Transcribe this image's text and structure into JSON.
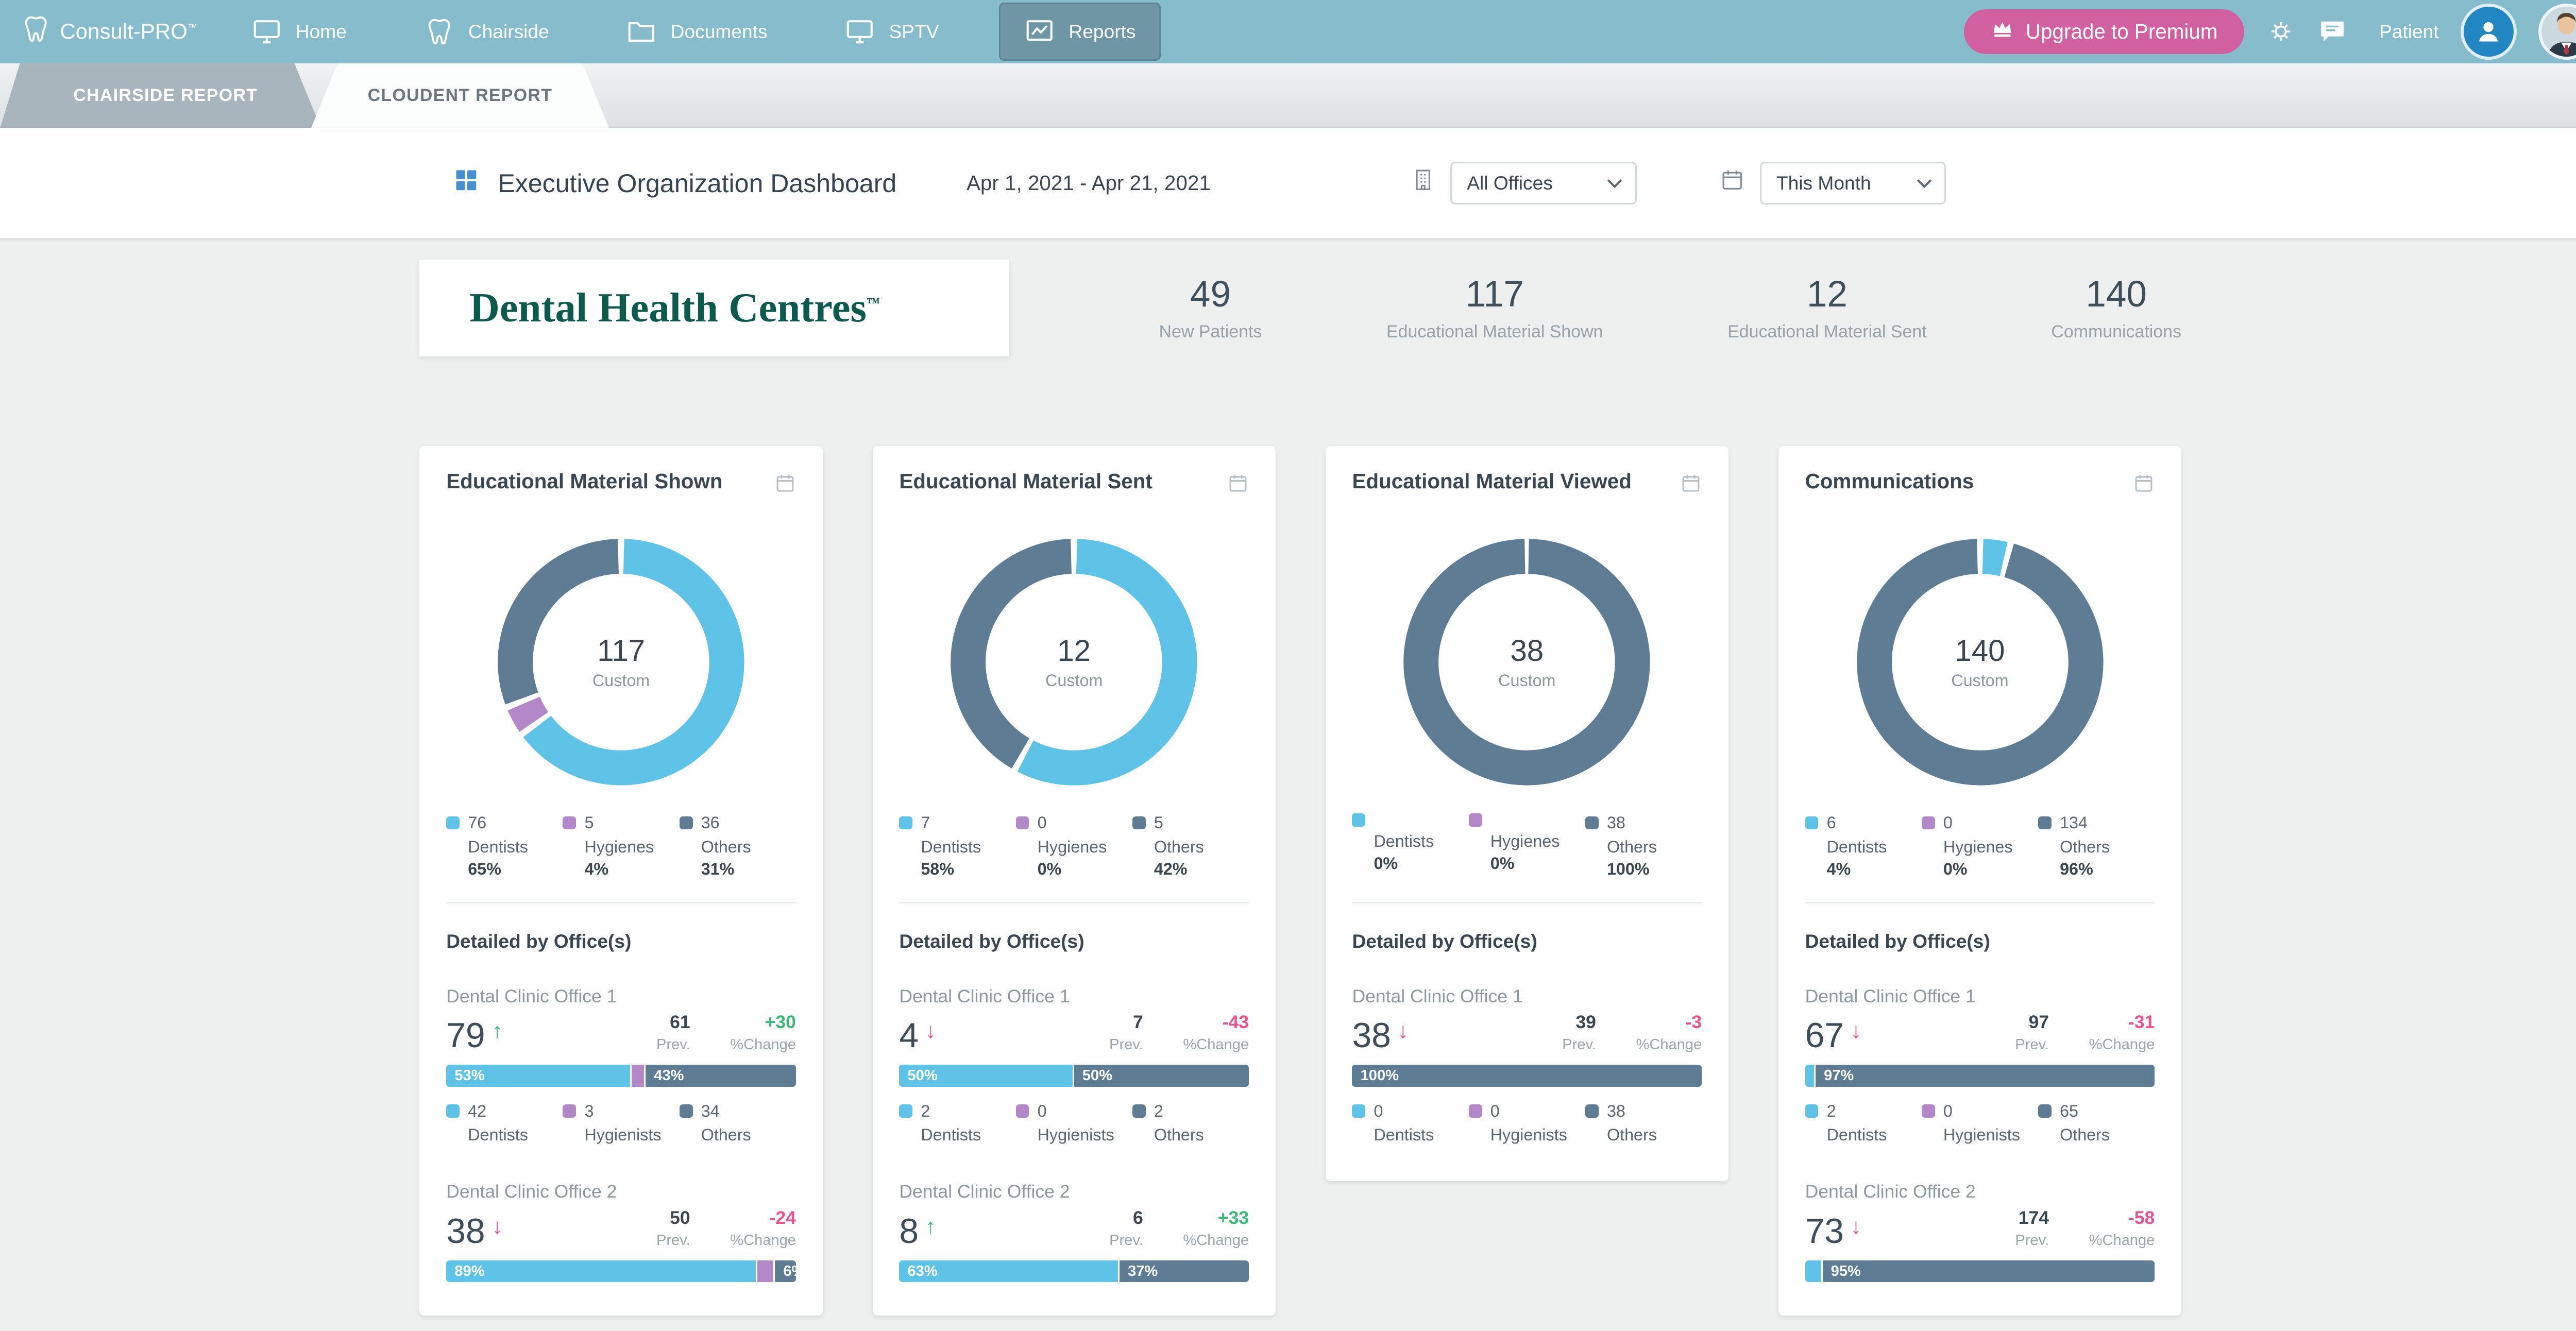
{
  "nav": {
    "brand": "Consult-PRO",
    "brand_tm": "™",
    "items": [
      {
        "label": "Home"
      },
      {
        "label": "Chairside"
      },
      {
        "label": "Documents"
      },
      {
        "label": "SPTV"
      },
      {
        "label": "Reports"
      }
    ],
    "upgrade_label": "Upgrade to Premium",
    "patient_label": "Patient"
  },
  "tabs": [
    {
      "label": "CHAIRSIDE REPORT"
    },
    {
      "label": "CLOUDENT REPORT"
    }
  ],
  "header": {
    "title": "Executive Organization Dashboard",
    "date_range": "Apr 1, 2021 - Apr 21, 2021",
    "office_filter": "All Offices",
    "period_filter": "This Month"
  },
  "logo": {
    "text": "Dental Health Centres",
    "tm": "™"
  },
  "summary": [
    {
      "value": "49",
      "label": "New Patients"
    },
    {
      "value": "117",
      "label": "Educational Material Shown"
    },
    {
      "value": "12",
      "label": "Educational Material Sent"
    },
    {
      "value": "140",
      "label": "Communications"
    }
  ],
  "labels": {
    "detail_heading": "Detailed by Office(s)",
    "prev": "Prev.",
    "change": "%Change"
  },
  "colors": {
    "dentists": "#5fc3e7",
    "hygienists": "#b288c8",
    "others": "#5e7d94",
    "positive": "#3cb878",
    "negative": "#e8538f"
  },
  "cards": [
    {
      "title": "Educational Material Shown",
      "donut": {
        "total": "117",
        "sublabel": "Custom",
        "segments": [
          {
            "key": "dentists",
            "value": "76",
            "label": "Dentists",
            "pct": "65%",
            "pct_num": 65
          },
          {
            "key": "hygienists",
            "value": "5",
            "label": "Hygienes",
            "pct": "4%",
            "pct_num": 4
          },
          {
            "key": "others",
            "value": "36",
            "label": "Others",
            "pct": "31%",
            "pct_num": 31
          }
        ]
      },
      "offices": [
        {
          "name": "Dental Clinic Office 1",
          "value": "79",
          "trend": "up",
          "prev": "61",
          "change": "+30",
          "bar": [
            {
              "key": "dentists",
              "pct": 53,
              "label": "53%"
            },
            {
              "key": "hygienists",
              "pct": 4,
              "label": ""
            },
            {
              "key": "others",
              "pct": 43,
              "label": "43%"
            }
          ],
          "legend": [
            {
              "key": "dentists",
              "value": "42",
              "label": "Dentists"
            },
            {
              "key": "hygienists",
              "value": "3",
              "label": "Hygienists"
            },
            {
              "key": "others",
              "value": "34",
              "label": "Others"
            }
          ]
        },
        {
          "name": "Dental Clinic Office 2",
          "value": "38",
          "trend": "down",
          "prev": "50",
          "change": "-24",
          "bar": [
            {
              "key": "dentists",
              "pct": 89,
              "label": "89%"
            },
            {
              "key": "hygienists",
              "pct": 5,
              "label": ""
            },
            {
              "key": "others",
              "pct": 6,
              "label": "6%"
            }
          ]
        }
      ]
    },
    {
      "title": "Educational Material Sent",
      "donut": {
        "total": "12",
        "sublabel": "Custom",
        "segments": [
          {
            "key": "dentists",
            "value": "7",
            "label": "Dentists",
            "pct": "58%",
            "pct_num": 58
          },
          {
            "key": "hygienists",
            "value": "0",
            "label": "Hygienes",
            "pct": "0%",
            "pct_num": 0
          },
          {
            "key": "others",
            "value": "5",
            "label": "Others",
            "pct": "42%",
            "pct_num": 42
          }
        ]
      },
      "offices": [
        {
          "name": "Dental Clinic Office 1",
          "value": "4",
          "trend": "down",
          "prev": "7",
          "change": "-43",
          "bar": [
            {
              "key": "dentists",
              "pct": 50,
              "label": "50%"
            },
            {
              "key": "others",
              "pct": 50,
              "label": "50%"
            }
          ],
          "legend": [
            {
              "key": "dentists",
              "value": "2",
              "label": "Dentists"
            },
            {
              "key": "hygienists",
              "value": "0",
              "label": "Hygienists"
            },
            {
              "key": "others",
              "value": "2",
              "label": "Others"
            }
          ]
        },
        {
          "name": "Dental Clinic Office 2",
          "value": "8",
          "trend": "up",
          "prev": "6",
          "change": "+33",
          "bar": [
            {
              "key": "dentists",
              "pct": 63,
              "label": "63%"
            },
            {
              "key": "others",
              "pct": 37,
              "label": "37%"
            }
          ]
        }
      ]
    },
    {
      "title": "Educational Material Viewed",
      "donut": {
        "total": "38",
        "sublabel": "Custom",
        "segments": [
          {
            "key": "dentists",
            "value": "",
            "label": "Dentists",
            "pct": "0%",
            "pct_num": 0
          },
          {
            "key": "hygienists",
            "value": "",
            "label": "Hygienes",
            "pct": "0%",
            "pct_num": 0
          },
          {
            "key": "others",
            "value": "38",
            "label": "Others",
            "pct": "100%",
            "pct_num": 100
          }
        ]
      },
      "offices": [
        {
          "name": "Dental Clinic Office 1",
          "value": "38",
          "trend": "down",
          "prev": "39",
          "change": "-3",
          "bar": [
            {
              "key": "others",
              "pct": 100,
              "label": "100%"
            }
          ],
          "legend": [
            {
              "key": "dentists",
              "value": "0",
              "label": "Dentists"
            },
            {
              "key": "hygienists",
              "value": "0",
              "label": "Hygienists"
            },
            {
              "key": "others",
              "value": "38",
              "label": "Others"
            }
          ]
        }
      ]
    },
    {
      "title": "Communications",
      "donut": {
        "total": "140",
        "sublabel": "Custom",
        "segments": [
          {
            "key": "dentists",
            "value": "6",
            "label": "Dentists",
            "pct": "4%",
            "pct_num": 4
          },
          {
            "key": "hygienists",
            "value": "0",
            "label": "Hygienes",
            "pct": "0%",
            "pct_num": 0
          },
          {
            "key": "others",
            "value": "134",
            "label": "Others",
            "pct": "96%",
            "pct_num": 96
          }
        ]
      },
      "offices": [
        {
          "name": "Dental Clinic Office 1",
          "value": "67",
          "trend": "down",
          "prev": "97",
          "change": "-31",
          "bar": [
            {
              "key": "dentists",
              "pct": 3,
              "label": ""
            },
            {
              "key": "others",
              "pct": 97,
              "label": "97%"
            }
          ],
          "legend": [
            {
              "key": "dentists",
              "value": "2",
              "label": "Dentists"
            },
            {
              "key": "hygienists",
              "value": "0",
              "label": "Hygienists"
            },
            {
              "key": "others",
              "value": "65",
              "label": "Others"
            }
          ]
        },
        {
          "name": "Dental Clinic Office 2",
          "value": "73",
          "trend": "down",
          "prev": "174",
          "change": "-58",
          "bar": [
            {
              "key": "dentists",
              "pct": 5,
              "label": ""
            },
            {
              "key": "others",
              "pct": 95,
              "label": "95%"
            }
          ]
        }
      ]
    }
  ]
}
